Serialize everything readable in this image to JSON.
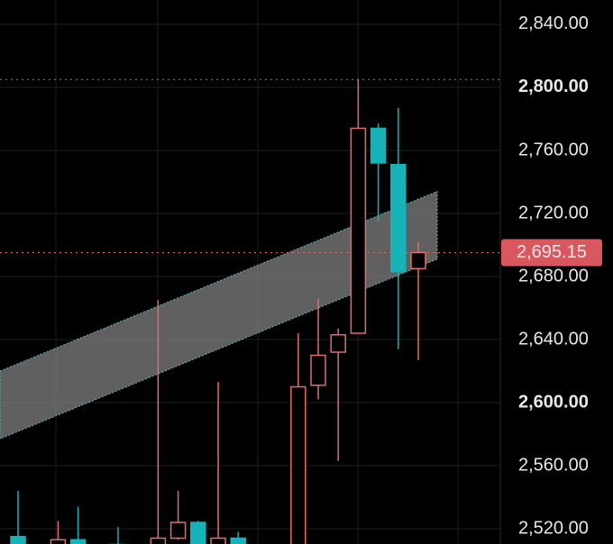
{
  "chart_data": {
    "type": "candlestick",
    "open": [
      2515,
      null,
      2500,
      2513,
      null,
      2510,
      null,
      2500,
      2514,
      2524,
      2500,
      2514,
      null,
      null,
      2500,
      2611,
      2632,
      2644,
      2774,
      2751,
      2685
    ],
    "high": [
      2544,
      null,
      2525,
      2534,
      null,
      2521,
      null,
      2665,
      2544,
      2525,
      2613,
      2518,
      null,
      null,
      2644,
      2666,
      2647,
      2805,
      2777,
      2787,
      2702
    ],
    "low": [
      2500,
      null,
      2495,
      2495,
      null,
      2495,
      null,
      2495,
      2513,
      2495,
      2495,
      2500,
      null,
      null,
      2495,
      2602,
      2563,
      2644,
      2715,
      2634,
      2627
    ],
    "close": [
      2505,
      null,
      2513,
      2500,
      null,
      2505,
      null,
      2514,
      2524,
      2505,
      2514,
      2505,
      null,
      null,
      2610,
      2630,
      2643,
      2774,
      2752,
      2683,
      2695.15
    ],
    "up_color": "#e06c6c",
    "down_color": "#16b3b8",
    "ylim": [
      2510.3,
      2855.4
    ],
    "yticks": [
      {
        "value": 2520,
        "label": "2,520.00"
      },
      {
        "value": 2560,
        "label": "2,560.00"
      },
      {
        "value": 2600,
        "label": "2,600.00"
      },
      {
        "value": 2640,
        "label": "2,640.00"
      },
      {
        "value": 2680,
        "label": "2,680.00"
      },
      {
        "value": 2720,
        "label": "2,720.00"
      },
      {
        "value": 2760,
        "label": "2,760.00"
      },
      {
        "value": 2800,
        "label": "2,800.00"
      },
      {
        "value": 2840,
        "label": "2,840.00"
      }
    ],
    "bold_ticks": [
      2600,
      2800
    ],
    "grid": true,
    "high_line": 2805,
    "price_line": {
      "value": 2695.15,
      "label": "2,695.15"
    },
    "channel": {
      "upper": [
        2620,
        2734
      ],
      "lower": [
        2577,
        2691
      ]
    }
  }
}
